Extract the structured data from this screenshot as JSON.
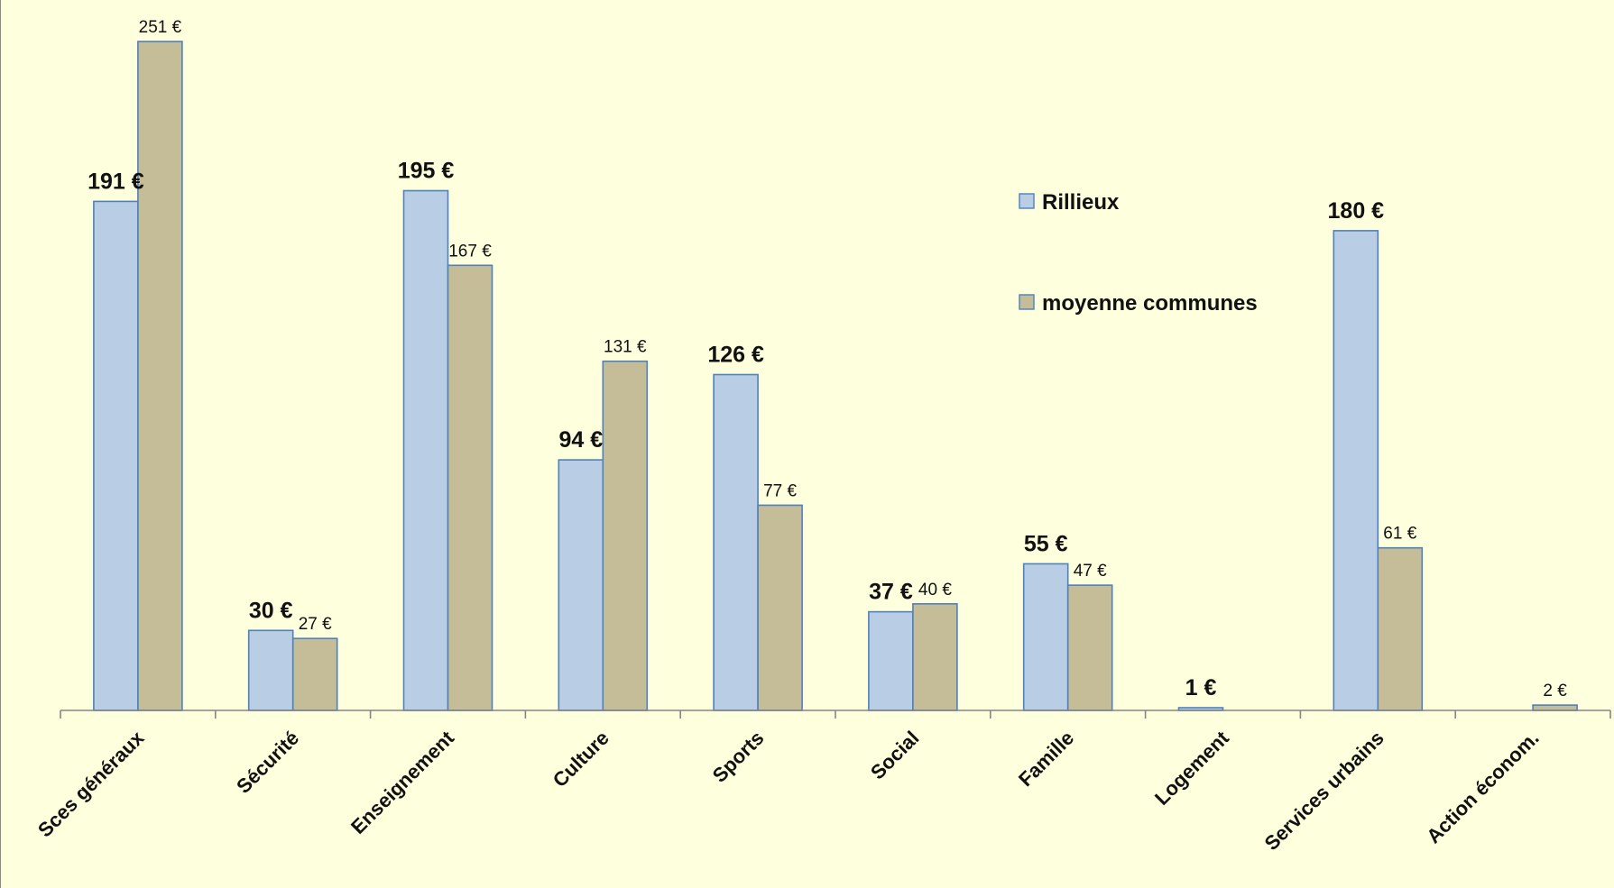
{
  "chart_data": {
    "type": "bar",
    "title": "",
    "xlabel": "",
    "ylabel": "",
    "ylim": [
      0,
      251
    ],
    "grid": false,
    "legend": "right",
    "categories": [
      "Sces généraux",
      "Sécurité",
      "Enseignement",
      "Culture",
      "Sports",
      "Social",
      "Famille",
      "Logement",
      "Services urbains",
      "Action économ."
    ],
    "series": [
      {
        "name": "Rillieux",
        "color": "#B9CDE5",
        "edge": "#4F81BD",
        "values": [
          191,
          30,
          195,
          94,
          126,
          37,
          55,
          1,
          180,
          0
        ],
        "labels": [
          "191 €",
          "30 €",
          "195 €",
          "94 €",
          "126 €",
          "37 €",
          "55 €",
          "1 €",
          "180 €",
          ""
        ]
      },
      {
        "name": "moyenne communes",
        "color": "#C4BD97",
        "edge": "#4F81BD",
        "values": [
          251,
          27,
          167,
          131,
          77,
          40,
          47,
          0,
          61,
          2
        ],
        "labels": [
          "251 €",
          "27 €",
          "167 €",
          "131 €",
          "77 €",
          "40 €",
          "47 €",
          "",
          "61 €",
          "2 €"
        ]
      }
    ]
  }
}
